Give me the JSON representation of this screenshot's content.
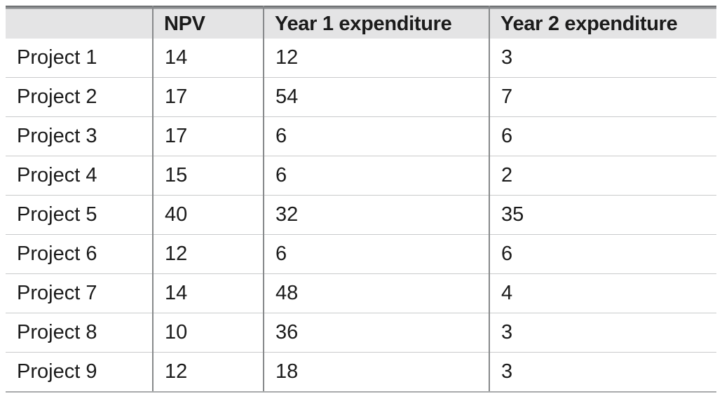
{
  "table": {
    "columns": [
      "",
      "NPV",
      "Year 1 expenditure",
      "Year 2 expenditure"
    ],
    "rows": [
      [
        "Project 1",
        "14",
        "12",
        "3"
      ],
      [
        "Project 2",
        "17",
        "54",
        "7"
      ],
      [
        "Project 3",
        "17",
        "6",
        "6"
      ],
      [
        "Project 4",
        "15",
        "6",
        "2"
      ],
      [
        "Project 5",
        "40",
        "32",
        "35"
      ],
      [
        "Project 6",
        "12",
        "6",
        "6"
      ],
      [
        "Project 7",
        "14",
        "48",
        "4"
      ],
      [
        "Project 8",
        "10",
        "36",
        "3"
      ],
      [
        "Project 9",
        "12",
        "18",
        "3"
      ]
    ]
  },
  "colors": {
    "header_background": "#e4e4e5",
    "top_rule_dark": "#707274",
    "top_rule_light": "#9c9ea0",
    "column_separator": "#87898b",
    "row_separator": "#c9cacb",
    "bottom_rule": "#a9abac",
    "text": "#1b1b1b",
    "page_background": "#ffffff"
  }
}
